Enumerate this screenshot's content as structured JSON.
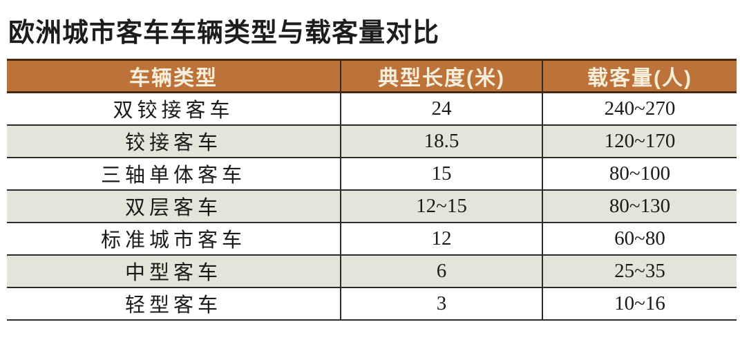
{
  "title": "欧洲城市客车车辆类型与载客量对比",
  "table": {
    "columns": [
      {
        "label": "车辆类型"
      },
      {
        "label": "典型长度(米)"
      },
      {
        "label": "载客量(人)"
      }
    ],
    "rows": [
      {
        "type": "双铰接客车",
        "length": "24",
        "capacity": "240~270"
      },
      {
        "type": "铰接客车",
        "length": "18.5",
        "capacity": "120~170"
      },
      {
        "type": "三轴单体客车",
        "length": "15",
        "capacity": "80~100"
      },
      {
        "type": "双层客车",
        "length": "12~15",
        "capacity": "80~130"
      },
      {
        "type": "标准城市客车",
        "length": "12",
        "capacity": "60~80"
      },
      {
        "type": "中型客车",
        "length": "6",
        "capacity": "25~35"
      },
      {
        "type": "轻型客车",
        "length": "3",
        "capacity": "10~16"
      }
    ]
  },
  "colors": {
    "header_bg": "#bd7239",
    "header_border": "#46280f",
    "header_text": "#f7efdc",
    "row_bg": "#ffffff",
    "row_alt_bg": "#e5e4d9",
    "grid_line": "#2b2b2b",
    "title_text": "#1d1d1b"
  },
  "chart_data": {
    "type": "table",
    "title": "欧洲城市客车车辆类型与载客量对比",
    "columns": [
      "车辆类型",
      "典型长度(米)",
      "载客量(人)"
    ],
    "rows": [
      [
        "双铰接客车",
        "24",
        "240~270"
      ],
      [
        "铰接客车",
        "18.5",
        "120~170"
      ],
      [
        "三轴单体客车",
        "15",
        "80~100"
      ],
      [
        "双层客车",
        "12~15",
        "80~130"
      ],
      [
        "标准城市客车",
        "12",
        "60~80"
      ],
      [
        "中型客车",
        "6",
        "25~35"
      ],
      [
        "轻型客车",
        "3",
        "10~16"
      ]
    ]
  }
}
